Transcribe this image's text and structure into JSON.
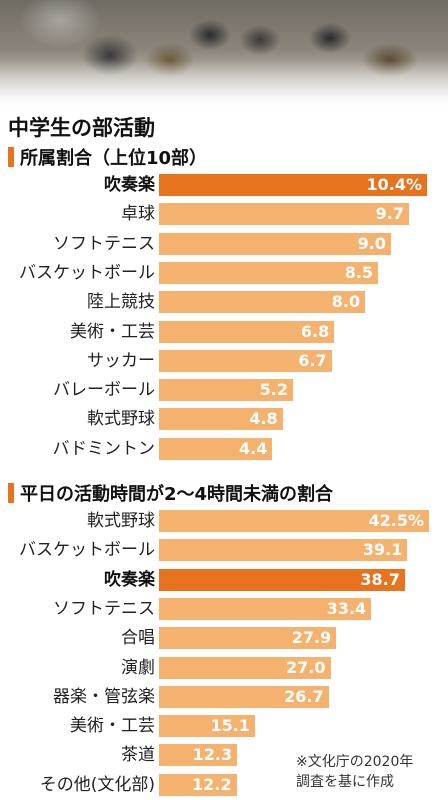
{
  "main_title": "中学生の部活動",
  "colors": {
    "highlight": "#e8731f",
    "bar": "#f5b16e"
  },
  "chart_data": [
    {
      "type": "bar",
      "title": "所属割合（上位10部）",
      "unit": "%",
      "categories": [
        "吹奏楽",
        "卓球",
        "ソフトテニス",
        "バスケットボール",
        "陸上競技",
        "美術・工芸",
        "サッカー",
        "バレーボール",
        "軟式野球",
        "バドミントン"
      ],
      "values": [
        10.4,
        9.7,
        9.0,
        8.5,
        8.0,
        6.8,
        6.7,
        5.2,
        4.8,
        4.4
      ],
      "value_labels": [
        "10.4%",
        "9.7",
        "9.0",
        "8.5",
        "8.0",
        "6.8",
        "6.7",
        "5.2",
        "4.8",
        "4.4"
      ],
      "highlight_index": 0
    },
    {
      "type": "bar",
      "title": "平日の活動時間が2～4時間未満の割合",
      "unit": "%",
      "categories": [
        "軟式野球",
        "バスケットボール",
        "吹奏楽",
        "ソフトテニス",
        "合唱",
        "演劇",
        "器楽・管弦楽",
        "美術・工芸",
        "茶道",
        "その他(文化部)"
      ],
      "values": [
        42.5,
        39.1,
        38.7,
        33.4,
        27.9,
        27.0,
        26.7,
        15.1,
        12.3,
        12.2
      ],
      "value_labels": [
        "42.5%",
        "39.1",
        "38.7",
        "33.4",
        "27.9",
        "27.0",
        "26.7",
        "15.1",
        "12.3",
        "12.2"
      ],
      "highlight_index": 2
    }
  ],
  "source_note": [
    "※文化庁の2020年",
    "調査を基に作成"
  ]
}
